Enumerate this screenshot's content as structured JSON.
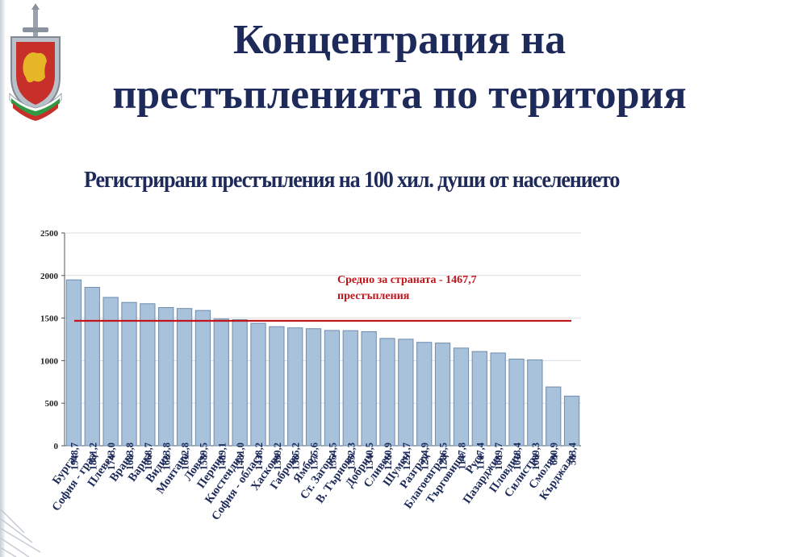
{
  "header": {
    "title_line1": "Концентрация на",
    "title_line2": "престъпленията по територия",
    "subtitle": "Регистрирани престъпления на 100 хил. души от населението"
  },
  "colors": {
    "title": "#1d2a5a",
    "bar_fill": "#a8c2dc",
    "bar_stroke": "#6f8cad",
    "average_line": "#c0161c",
    "value_label": "#1d2a5a"
  },
  "chart_data": {
    "type": "bar",
    "categories": [
      "Бургас",
      "София - град",
      "Плевен",
      "Враца",
      "Варна",
      "Видин",
      "Монтана",
      "Ловеч",
      "Перник",
      "Кюстендил",
      "София - област",
      "Хасково",
      "Габрово",
      "Ямбол",
      "Ст. Загора",
      "В. Търново",
      "Добрич",
      "Сливен",
      "Шумен",
      "Разград",
      "Благоевград",
      "Търговище",
      "Русе",
      "Пазарджик",
      "Пловдив",
      "Силистра",
      "Смолян",
      "Кърджали"
    ],
    "values": [
      1948.7,
      1861.2,
      1743.0,
      1683.8,
      1668.7,
      1623.8,
      1612.8,
      1589.5,
      1489.1,
      1481.0,
      1438.2,
      1399.2,
      1385.2,
      1375.6,
      1354.5,
      1352.3,
      1340.5,
      1260.9,
      1251.7,
      1214.9,
      1206.5,
      1147.8,
      1107.4,
      1089.7,
      1018.4,
      1009.3,
      690.9,
      583.4
    ],
    "value_labels": [
      "1948,7",
      "1861,2",
      "1743,0",
      "1683,8",
      "1668,7",
      "1623,8",
      "1612,8",
      "1589,5",
      "1489,1",
      "1481,0",
      "1438,2",
      "1399,2",
      "1385,2",
      "1375,6",
      "1354,5",
      "1352,3",
      "1340,5",
      "1260,9",
      "1251,7",
      "1214,9",
      "1206,5",
      "1147,8",
      "1107,4",
      "1089,7",
      "1018,4",
      "1009,3",
      "690,9",
      "583,4"
    ],
    "yticks": [
      0,
      500,
      1000,
      1500,
      2000,
      2500
    ],
    "ylim": [
      0,
      2500
    ],
    "grid": true,
    "reference_line": {
      "value": 1467.7,
      "label_line1": "Средно за страната - 1467,7",
      "label_line2": "престъпления"
    }
  }
}
